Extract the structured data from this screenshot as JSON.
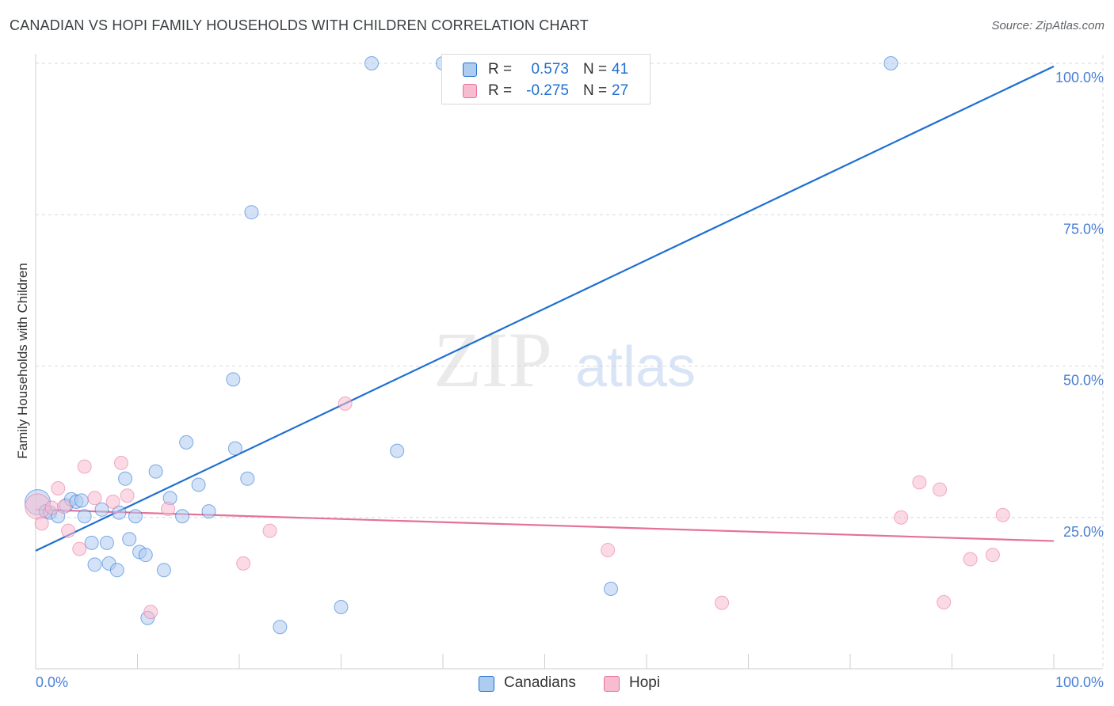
{
  "title": "CANADIAN VS HOPI FAMILY HOUSEHOLDS WITH CHILDREN CORRELATION CHART",
  "source": "Source: ZipAtlas.com",
  "watermark": {
    "zip": "ZIP",
    "atlas": "atlas"
  },
  "colors": {
    "blue": "#1f6fd1",
    "blue_fill": "#aecbf0",
    "pink": "#e5719a",
    "pink_fill": "#f7bccf",
    "grid": "#d8d8d8",
    "axis_text": "#4a7fd4"
  },
  "legend": {
    "rows": [
      {
        "series": "Canadians",
        "r_label": "R =",
        "r_value": "0.573",
        "n_label": "N =",
        "n_value": "41"
      },
      {
        "series": "Hopi",
        "r_label": "R =",
        "r_value": "-0.275",
        "n_label": "N =",
        "n_value": "27"
      }
    ]
  },
  "bottom_legend": [
    "Canadians",
    "Hopi"
  ],
  "chart_data": {
    "type": "scatter",
    "title": "CANADIAN VS HOPI FAMILY HOUSEHOLDS WITH CHILDREN CORRELATION CHART",
    "xlabel": "",
    "ylabel": "Family Households with Children",
    "xlim": [
      0,
      100
    ],
    "ylim": [
      0,
      102
    ],
    "x_tick_labels": [
      "0.0%",
      "100.0%"
    ],
    "y_ticks": [
      25,
      50,
      75,
      100
    ],
    "y_tick_labels": [
      "25.0%",
      "50.0%",
      "75.0%",
      "100.0%"
    ],
    "grid": true,
    "series": [
      {
        "name": "Canadians",
        "r": 0.573,
        "n": 41,
        "trendline": {
          "x": [
            0,
            100
          ],
          "y": [
            19.5,
            99.5
          ]
        },
        "points": [
          {
            "x": 0.2,
            "y": 27.5,
            "big": true
          },
          {
            "x": 1.0,
            "y": 26.0
          },
          {
            "x": 1.4,
            "y": 25.8
          },
          {
            "x": 2.2,
            "y": 25.2
          },
          {
            "x": 3.0,
            "y": 27.0
          },
          {
            "x": 3.5,
            "y": 28.0
          },
          {
            "x": 4.0,
            "y": 27.6
          },
          {
            "x": 4.5,
            "y": 27.8
          },
          {
            "x": 4.8,
            "y": 25.2
          },
          {
            "x": 5.5,
            "y": 20.8
          },
          {
            "x": 5.8,
            "y": 17.2
          },
          {
            "x": 6.5,
            "y": 26.3
          },
          {
            "x": 7.0,
            "y": 20.8
          },
          {
            "x": 7.2,
            "y": 17.4
          },
          {
            "x": 8.0,
            "y": 16.3
          },
          {
            "x": 8.2,
            "y": 25.8
          },
          {
            "x": 8.8,
            "y": 31.4
          },
          {
            "x": 9.2,
            "y": 21.4
          },
          {
            "x": 9.8,
            "y": 25.2
          },
          {
            "x": 10.2,
            "y": 19.3
          },
          {
            "x": 10.8,
            "y": 18.8
          },
          {
            "x": 11.0,
            "y": 8.4
          },
          {
            "x": 11.8,
            "y": 32.6
          },
          {
            "x": 12.6,
            "y": 16.3
          },
          {
            "x": 13.2,
            "y": 28.2
          },
          {
            "x": 14.4,
            "y": 25.2
          },
          {
            "x": 14.8,
            "y": 37.4
          },
          {
            "x": 16.0,
            "y": 30.4
          },
          {
            "x": 17.0,
            "y": 26.0
          },
          {
            "x": 19.4,
            "y": 47.8
          },
          {
            "x": 19.6,
            "y": 36.4
          },
          {
            "x": 20.8,
            "y": 31.4
          },
          {
            "x": 21.2,
            "y": 75.4
          },
          {
            "x": 24.0,
            "y": 6.9
          },
          {
            "x": 30.0,
            "y": 10.2
          },
          {
            "x": 33.0,
            "y": 100.0
          },
          {
            "x": 35.5,
            "y": 36.0
          },
          {
            "x": 40.0,
            "y": 100.0
          },
          {
            "x": 56.5,
            "y": 13.2
          },
          {
            "x": 84.0,
            "y": 100.0
          }
        ]
      },
      {
        "name": "Hopi",
        "r": -0.275,
        "n": 27,
        "trendline": {
          "x": [
            0,
            100
          ],
          "y": [
            26.3,
            21.1
          ]
        },
        "points": [
          {
            "x": 0.2,
            "y": 26.8,
            "big": true
          },
          {
            "x": 0.6,
            "y": 24.0
          },
          {
            "x": 1.6,
            "y": 26.6
          },
          {
            "x": 2.2,
            "y": 29.8
          },
          {
            "x": 2.8,
            "y": 26.8
          },
          {
            "x": 3.2,
            "y": 22.8
          },
          {
            "x": 4.3,
            "y": 19.8
          },
          {
            "x": 4.8,
            "y": 33.4
          },
          {
            "x": 5.8,
            "y": 28.2
          },
          {
            "x": 7.6,
            "y": 27.6
          },
          {
            "x": 8.4,
            "y": 34.0
          },
          {
            "x": 9.0,
            "y": 28.6
          },
          {
            "x": 11.3,
            "y": 9.4
          },
          {
            "x": 13.0,
            "y": 26.4
          },
          {
            "x": 20.4,
            "y": 17.4
          },
          {
            "x": 23.0,
            "y": 22.8
          },
          {
            "x": 30.4,
            "y": 43.8
          },
          {
            "x": 56.2,
            "y": 19.6
          },
          {
            "x": 67.4,
            "y": 10.9
          },
          {
            "x": 85.0,
            "y": 25.0
          },
          {
            "x": 86.8,
            "y": 30.8
          },
          {
            "x": 88.8,
            "y": 29.6
          },
          {
            "x": 89.2,
            "y": 11.0
          },
          {
            "x": 91.8,
            "y": 18.1
          },
          {
            "x": 94.0,
            "y": 18.8
          },
          {
            "x": 95.0,
            "y": 25.4
          }
        ]
      }
    ]
  }
}
